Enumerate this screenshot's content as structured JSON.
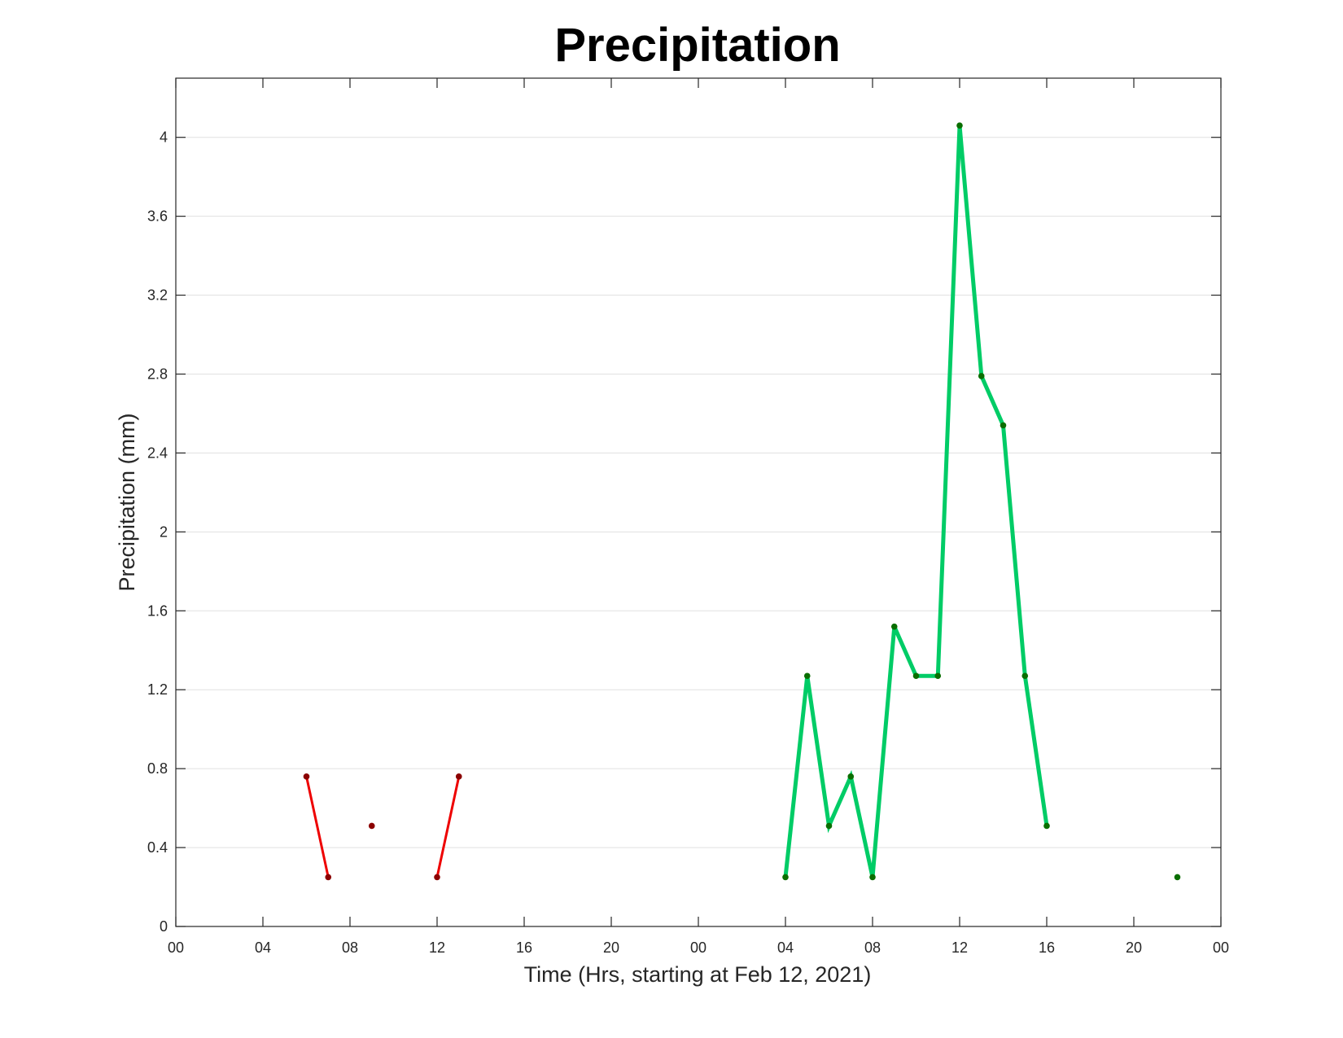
{
  "chart_data": {
    "type": "line",
    "title": "Precipitation",
    "xlabel": "Time (Hrs, starting at Feb 12, 2021)",
    "ylabel": "Precipitation (mm)",
    "x_unit": "hours since Feb 12, 2021 00:00",
    "xlim": [
      0,
      48
    ],
    "ylim": [
      0,
      4.3
    ],
    "x_ticks": [
      0,
      4,
      8,
      12,
      16,
      20,
      24,
      28,
      32,
      36,
      40,
      44,
      48
    ],
    "x_tick_labels": [
      "00",
      "04",
      "08",
      "12",
      "16",
      "20",
      "00",
      "04",
      "08",
      "12",
      "16",
      "20",
      "00"
    ],
    "y_ticks": [
      0,
      0.4,
      0.8,
      1.2,
      1.6,
      2,
      2.4,
      2.8,
      3.2,
      3.6,
      4
    ],
    "y_tick_labels": [
      "0",
      "0.4",
      "0.8",
      "1.2",
      "1.6",
      "2",
      "2.4",
      "2.8",
      "3.2",
      "3.6",
      "4"
    ],
    "grid": "horizontal",
    "series": [
      {
        "color": "#ee0000",
        "marker_color": "#8b0000",
        "segments": [
          [
            {
              "x": 6,
              "y": 0.76
            },
            {
              "x": 7,
              "y": 0.25
            }
          ],
          [
            {
              "x": 9,
              "y": 0.51
            }
          ],
          [
            {
              "x": 12,
              "y": 0.25
            },
            {
              "x": 13,
              "y": 0.76
            }
          ]
        ]
      },
      {
        "color": "#00cc66",
        "marker_color": "#0a6e00",
        "segments": [
          [
            {
              "x": 28,
              "y": 0.25
            },
            {
              "x": 29,
              "y": 1.27
            },
            {
              "x": 30,
              "y": 0.51
            },
            {
              "x": 31,
              "y": 0.76
            },
            {
              "x": 32,
              "y": 0.25
            },
            {
              "x": 33,
              "y": 1.52
            },
            {
              "x": 34,
              "y": 1.27
            },
            {
              "x": 35,
              "y": 1.27
            },
            {
              "x": 36,
              "y": 4.06
            },
            {
              "x": 37,
              "y": 2.79
            },
            {
              "x": 38,
              "y": 2.54
            },
            {
              "x": 39,
              "y": 1.27
            },
            {
              "x": 40,
              "y": 0.51
            }
          ],
          [
            {
              "x": 46,
              "y": 0.25
            }
          ]
        ]
      }
    ]
  }
}
